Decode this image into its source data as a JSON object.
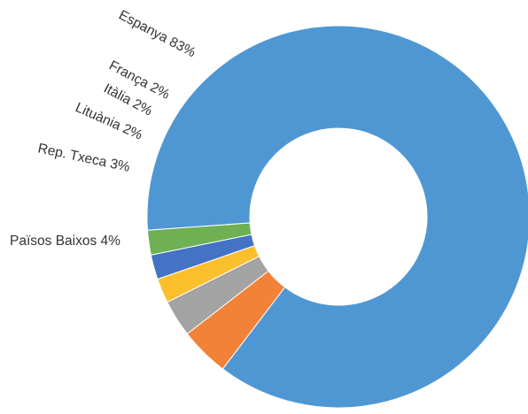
{
  "chart_data": {
    "type": "pie",
    "variant": "donut",
    "title": "",
    "legend": "none",
    "grid": false,
    "categories": [
      "Espanya",
      "Països Baixos",
      "Rep. Txeca",
      "Lituània",
      "Itàlia",
      "França"
    ],
    "values": [
      83,
      4,
      3,
      2,
      2,
      2
    ],
    "labels": [
      "Espanya 83%",
      "Països Baixos 4%",
      "Rep. Txeca 3%",
      "Lituània 2%",
      "Itàlia 2%",
      "França 2%"
    ],
    "colors": [
      "#4f97d3",
      "#f28237",
      "#a3a3a3",
      "#fcbf2c",
      "#4472c4",
      "#6eb053"
    ]
  }
}
